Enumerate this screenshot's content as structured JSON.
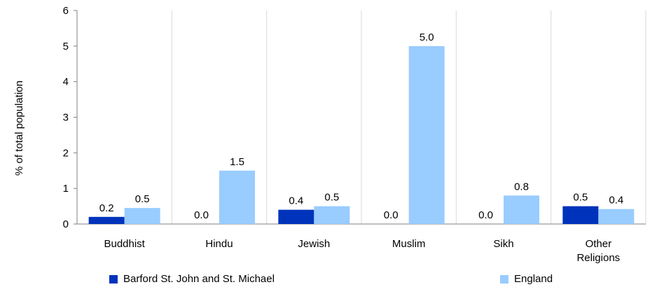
{
  "chart_data": {
    "type": "bar",
    "categories": [
      "Buddhist",
      "Hindu",
      "Jewish",
      "Muslim",
      "Sikh",
      [
        "Other",
        "Religions"
      ]
    ],
    "series": [
      {
        "name": "Barford St. John and St. Michael",
        "color": "#0033bb",
        "values": [
          0.2,
          0.0,
          0.4,
          0.0,
          0.0,
          0.5
        ],
        "labels": [
          "0.2",
          "0.0",
          "0.4",
          "0.0",
          "0.0",
          "0.5"
        ]
      },
      {
        "name": "England",
        "color": "#99ccff",
        "values": [
          0.45,
          1.5,
          0.5,
          5.0,
          0.8,
          0.42
        ],
        "labels": [
          "0.5",
          "1.5",
          "0.5",
          "5.0",
          "0.8",
          "0.4"
        ]
      }
    ],
    "ylabel": "% of total population",
    "ylim": [
      0,
      6
    ],
    "yticks": [
      "0",
      "1",
      "2",
      "3",
      "4",
      "5",
      "6"
    ],
    "grid": true,
    "legend_position": "bottom"
  }
}
